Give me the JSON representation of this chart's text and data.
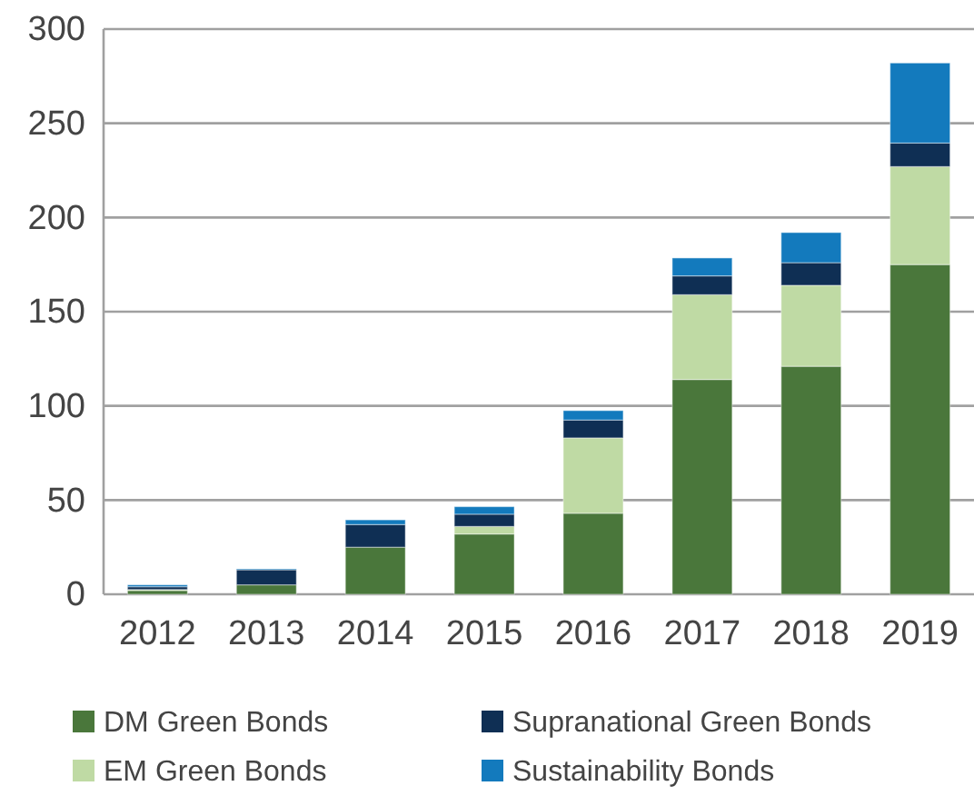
{
  "chart_data": {
    "type": "bar",
    "stacked": true,
    "categories": [
      "2012",
      "2013",
      "2014",
      "2015",
      "2016",
      "2017",
      "2018",
      "2019"
    ],
    "series": [
      {
        "name": "DM Green Bonds",
        "color": "#4a773b",
        "values": [
          2,
          5,
          25,
          32,
          43,
          114,
          121,
          175
        ]
      },
      {
        "name": "EM Green Bonds",
        "color": "#bfdaa4",
        "values": [
          0.5,
          0,
          0,
          4,
          40,
          45,
          43,
          52
        ]
      },
      {
        "name": "Supranational Green Bonds",
        "color": "#0f2f54",
        "values": [
          1.5,
          8,
          12,
          6.5,
          9.5,
          10,
          12,
          12.5
        ]
      },
      {
        "name": "Sustainability Bonds",
        "color": "#137abd",
        "values": [
          1,
          0.5,
          2.5,
          4,
          5,
          9.5,
          16,
          42.5
        ]
      }
    ],
    "ylim": [
      0,
      300
    ],
    "yticks": [
      0,
      50,
      100,
      150,
      200,
      250,
      300
    ],
    "grid": "y",
    "legend": "bottom"
  }
}
